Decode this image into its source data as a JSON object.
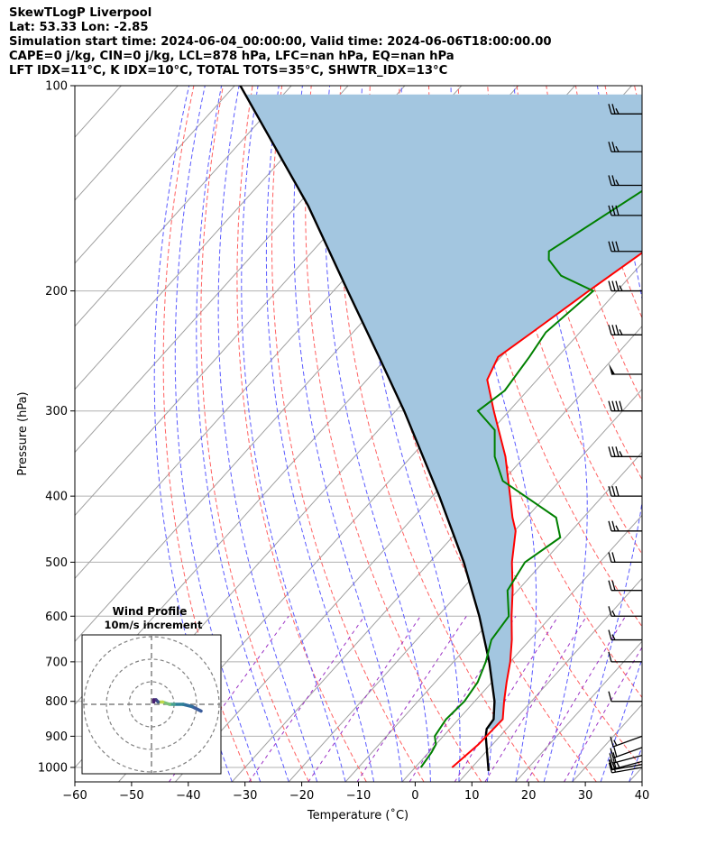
{
  "header": {
    "line1": "SkewTLogP Liverpool",
    "line2": "Lat: 53.33   Lon: -2.85",
    "line3": "Simulation start time: 2024-06-04_00:00:00, Valid time: 2024-06-06T18:00:00.00",
    "line4": "CAPE=0 j/kg, CIN=0 j/kg, LCL=878 hPa, LFC=nan hPa, EQ=nan hPa",
    "line5": "LFT IDX=11°C, K IDX=10°C, TOTAL TOTS=35°C, SHWTR_IDX=13°C"
  },
  "chart_data": {
    "type": "skewt",
    "xlabel": "Temperature (˚C)",
    "ylabel": "Pressure (hPa)",
    "xlim": [
      -60,
      40
    ],
    "ylim": [
      1050,
      100
    ],
    "x_ticks": [
      -60,
      -50,
      -40,
      -30,
      -20,
      -10,
      0,
      10,
      20,
      30,
      40
    ],
    "x_tick_labels": [
      "−60",
      "−50",
      "−40",
      "−30",
      "−20",
      "−10",
      "0",
      "10",
      "20",
      "30",
      "40"
    ],
    "y_ticks": [
      1000,
      900,
      800,
      700,
      600,
      500,
      400,
      300,
      200,
      100
    ],
    "y_tick_labels": [
      "1000",
      "900",
      "800",
      "700",
      "600",
      "500",
      "400",
      "300",
      "200",
      "100"
    ],
    "grid": true,
    "log_pressure": true,
    "colors": {
      "temperature": "#ff0000",
      "dewpoint": "#008000",
      "parcel": "#000000",
      "fill": "#a3c6e0",
      "dry_adiabats": "#ff6060",
      "moist_adiabats": "#5a5aff",
      "mixing_ratio": "#9b30c4",
      "isotherms": "#a0a0a0"
    },
    "temperature": {
      "p": [
        1000,
        925,
        850,
        800,
        750,
        700,
        650,
        600,
        550,
        500,
        450,
        430,
        400,
        350,
        300,
        270,
        250,
        230,
        200,
        175,
        160,
        150,
        140,
        120,
        100
      ],
      "t": [
        6.5,
        7.5,
        7.8,
        5.2,
        2.6,
        0.0,
        -3.2,
        -7.0,
        -10.9,
        -15.5,
        -19.8,
        -22.5,
        -26.3,
        -33.4,
        -42.7,
        -48.8,
        -50.5,
        -48.4,
        -45.0,
        -41.5,
        -39.5,
        -39.2,
        -38.8,
        -41.5,
        -45.0
      ]
    },
    "dewpoint": {
      "p": [
        1000,
        950,
        925,
        900,
        850,
        800,
        750,
        700,
        650,
        600,
        550,
        500,
        460,
        430,
        380,
        350,
        320,
        300,
        280,
        250,
        230,
        200,
        190,
        180,
        175,
        100
      ],
      "t": [
        1.0,
        0.5,
        0.0,
        -1.5,
        -2.2,
        -1.8,
        -2.5,
        -4.3,
        -6.8,
        -7.5,
        -11.8,
        -13.2,
        -10.9,
        -14.8,
        -30.0,
        -35.3,
        -39.5,
        -45.5,
        -44.0,
        -45.0,
        -46.0,
        -44.2,
        -52.3,
        -57.0,
        -58.3,
        -39.5
      ]
    },
    "parcel": {
      "p": [
        1012,
        900,
        878,
        850,
        800,
        700,
        600,
        500,
        400,
        300,
        250,
        200,
        150,
        100
      ],
      "t": [
        13.5,
        7.5,
        6.5,
        6.2,
        3.5,
        -3.7,
        -12.7,
        -24.0,
        -38.8,
        -58.5,
        -71.5,
        -87.5,
        -108.0,
        -139.0
      ]
    },
    "wind_barbs": {
      "p": [
        1000,
        990,
        980,
        960,
        935,
        900,
        800,
        700,
        650,
        600,
        550,
        500,
        450,
        400,
        350,
        300,
        265,
        232,
        200,
        175,
        155,
        140,
        125,
        110
      ],
      "speed_kt": [
        20,
        15,
        25,
        20,
        20,
        15,
        10,
        10,
        15,
        15,
        20,
        20,
        25,
        30,
        35,
        40,
        50,
        35,
        35,
        30,
        30,
        25,
        25,
        25
      ],
      "dir_deg": [
        260,
        260,
        255,
        255,
        250,
        250,
        270,
        270,
        270,
        270,
        270,
        270,
        270,
        270,
        270,
        270,
        270,
        270,
        270,
        270,
        270,
        270,
        270,
        270
      ]
    },
    "hodograph": {
      "title": "Wind Profile",
      "subtitle": "10m/s increment",
      "rings_ms": [
        10,
        20,
        30
      ],
      "u": [
        22,
        18,
        14,
        10,
        8,
        5,
        3,
        2,
        1,
        1
      ],
      "v": [
        -3,
        -1,
        0,
        0,
        0,
        1,
        1,
        2,
        2,
        1
      ]
    }
  }
}
